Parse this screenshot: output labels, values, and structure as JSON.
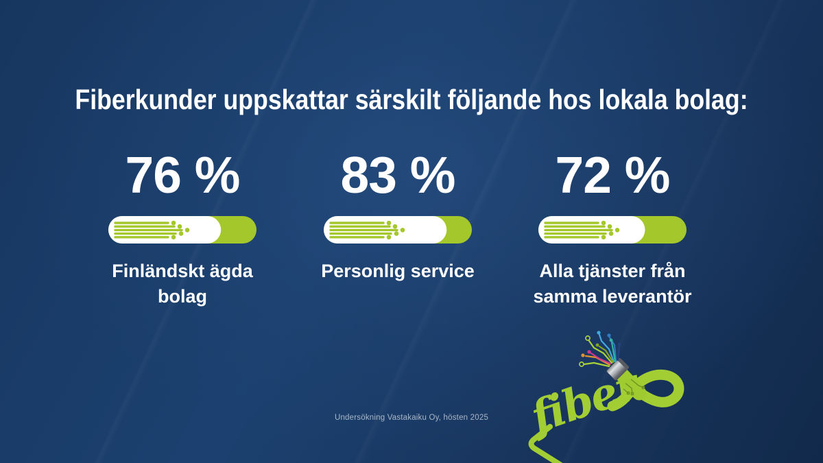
{
  "page": {
    "background_navy": "#1c4170",
    "accent_green": "#a4c72b",
    "logo_green": "#a2ce33",
    "text_white": "#ffffff",
    "footer_text_color": "#9fb0c4"
  },
  "header": {
    "title": "Fiberkunder uppskattar särskilt följande hos lokala bolag:"
  },
  "stats": [
    {
      "value": 76,
      "value_label": "76 %",
      "label_line1": "Finländskt ägda",
      "label_line2": "bolag",
      "icon": "fiber-cable-gauge"
    },
    {
      "value": 83,
      "value_label": "83 %",
      "label_line1": "Personlig service",
      "label_line2": "",
      "icon": "fiber-cable-gauge"
    },
    {
      "value": 72,
      "value_label": "72 %",
      "label_line1": "Alla tjänster från",
      "label_line2": "samma leverantör",
      "icon": "fiber-cable-gauge"
    }
  ],
  "footer": {
    "source": "Undersökning Vastakaiku Oy, hösten 2025"
  },
  "logo": {
    "text": "fiber",
    "icon": "fiber-optic-cable-logo"
  },
  "chart_data": {
    "type": "bar",
    "title": "Fiberkunder uppskattar särskilt följande hos lokala bolag:",
    "categories": [
      "Finländskt ägda bolag",
      "Personlig service",
      "Alla tjänster från samma leverantör"
    ],
    "values": [
      76,
      83,
      72
    ],
    "unit": "%",
    "ylim": [
      0,
      100
    ],
    "source": "Undersökning Vastakaiku Oy, hösten 2025",
    "bar_style": "horizontal pill gauge: white fill proportion on lime-green track with fiber-strand motif",
    "legend": "none",
    "grid": false
  }
}
